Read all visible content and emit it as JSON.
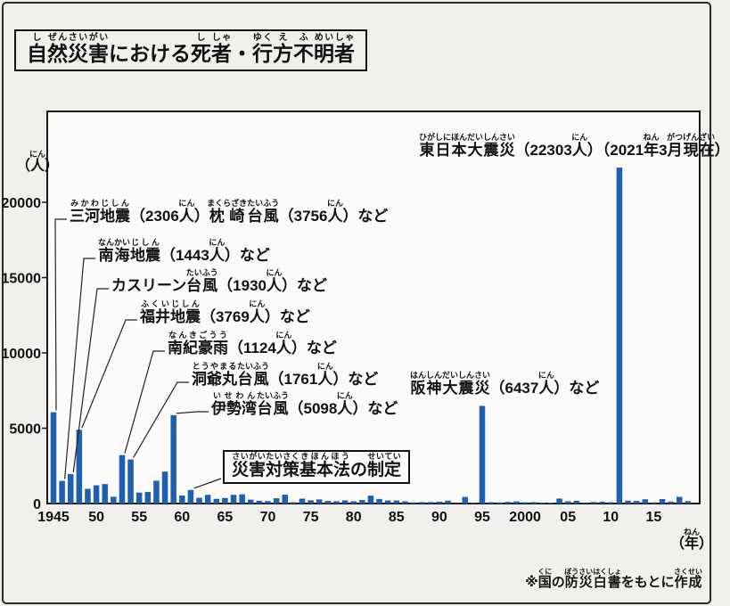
{
  "title": {
    "text": "自然災害における死者・行方不明者",
    "ruby": [
      [
        "自",
        "し"
      ],
      [
        "然",
        "ぜん"
      ],
      [
        "災",
        "さい"
      ],
      [
        "害",
        "がい"
      ],
      [
        "における",
        ""
      ],
      [
        "死",
        "し"
      ],
      [
        "者",
        "しゃ"
      ],
      [
        "・",
        ""
      ],
      [
        "行",
        "ゆく"
      ],
      [
        "方",
        "え"
      ],
      [
        "不",
        "ふ"
      ],
      [
        "明",
        "めい"
      ],
      [
        "者",
        "しゃ"
      ]
    ]
  },
  "source_note": {
    "text": "※国の防災白書をもとに作成",
    "ruby": [
      [
        "※",
        ""
      ],
      [
        "国",
        "くに"
      ],
      [
        "の",
        ""
      ],
      [
        "防災白書",
        "ぼうさいはくしょ"
      ],
      [
        "をもとに",
        ""
      ],
      [
        "作成",
        "さくせい"
      ]
    ]
  },
  "chart_data": {
    "type": "bar",
    "title": "自然災害における死者・行方不明者",
    "ylabel": "（人）",
    "ylabel_ruby": [
      [
        "（",
        ""
      ],
      [
        "人",
        "にん"
      ],
      [
        "）",
        ""
      ]
    ],
    "xlabel": "（年）",
    "xlabel_ruby": [
      [
        "（",
        ""
      ],
      [
        "年",
        "ねん"
      ],
      [
        "）",
        ""
      ]
    ],
    "ylim": [
      0,
      26000
    ],
    "y_ticks": [
      0,
      5000,
      10000,
      15000,
      20000
    ],
    "x_ticks": [
      {
        "year": 1945,
        "label": "1945"
      },
      {
        "year": 1950,
        "label": "50"
      },
      {
        "year": 1955,
        "label": "55"
      },
      {
        "year": 1960,
        "label": "60"
      },
      {
        "year": 1965,
        "label": "65"
      },
      {
        "year": 1970,
        "label": "70"
      },
      {
        "year": 1975,
        "label": "75"
      },
      {
        "year": 1980,
        "label": "80"
      },
      {
        "year": 1985,
        "label": "85"
      },
      {
        "year": 1990,
        "label": "90"
      },
      {
        "year": 1995,
        "label": "95"
      },
      {
        "year": 2000,
        "label": "2000"
      },
      {
        "year": 2005,
        "label": "05"
      },
      {
        "year": 2010,
        "label": "10"
      },
      {
        "year": 2015,
        "label": "15"
      }
    ],
    "bar_color": "#1e5fb0",
    "axis_color": "#1a1a1a",
    "plot_bg": "#fcfbf9",
    "grid": false,
    "categories": [
      1945,
      1946,
      1947,
      1948,
      1949,
      1950,
      1951,
      1952,
      1953,
      1954,
      1955,
      1956,
      1957,
      1958,
      1959,
      1960,
      1961,
      1962,
      1963,
      1964,
      1965,
      1966,
      1967,
      1968,
      1969,
      1970,
      1971,
      1972,
      1973,
      1974,
      1975,
      1976,
      1977,
      1978,
      1979,
      1980,
      1981,
      1982,
      1983,
      1984,
      1985,
      1986,
      1987,
      1988,
      1989,
      1990,
      1991,
      1992,
      1993,
      1994,
      1995,
      1996,
      1997,
      1998,
      1999,
      2000,
      2001,
      2002,
      2003,
      2004,
      2005,
      2006,
      2007,
      2008,
      2009,
      2010,
      2011,
      2012,
      2013,
      2014,
      2015,
      2016,
      2017,
      2018,
      2019
    ],
    "values": [
      6062,
      1504,
      1950,
      4897,
      975,
      1210,
      1291,
      449,
      3212,
      2926,
      727,
      765,
      1515,
      2120,
      5868,
      528,
      902,
      381,
      575,
      307,
      367,
      578,
      607,
      259,
      183,
      163,
      350,
      587,
      85,
      324,
      213,
      273,
      174,
      153,
      208,
      148,
      232,
      524,
      301,
      199,
      199,
      148,
      69,
      93,
      96,
      123,
      190,
      19,
      438,
      39,
      6482,
      84,
      71,
      109,
      141,
      78,
      90,
      48,
      62,
      327,
      148,
      177,
      39,
      101,
      115,
      89,
      22303,
      190,
      173,
      283,
      77,
      297,
      129,
      444,
      159
    ],
    "annotations": [
      {
        "id": "higashinihon-daishinsai",
        "text": "東日本大震災（22303人）（2021年3月現在）",
        "ruby": [
          [
            "東日本大震災",
            "ひがしにほんだいしんさい"
          ],
          [
            "（22303",
            ""
          ],
          [
            "人",
            "にん"
          ],
          [
            "）（2021",
            ""
          ],
          [
            "年",
            "ねん"
          ],
          [
            "3",
            ""
          ],
          [
            "月",
            "がつ"
          ],
          [
            "現在",
            "げんざい"
          ],
          [
            "）",
            ""
          ]
        ],
        "x": 470,
        "y": 172,
        "target_year": 2011,
        "leader": false,
        "boxed": false
      },
      {
        "id": "mikawa-jishin-makurazaki",
        "text": "三河地震（2306人）枕崎台風（3756人）など",
        "ruby": [
          [
            "三河",
            "みかわ"
          ],
          [
            "地震",
            "じしん"
          ],
          [
            "（2306",
            ""
          ],
          [
            "人",
            "にん"
          ],
          [
            "）",
            ""
          ],
          [
            "枕崎",
            "まくらざき"
          ],
          [
            "台風",
            "たいふう"
          ],
          [
            "（3756",
            ""
          ],
          [
            "人",
            "にん"
          ],
          [
            "）など",
            ""
          ]
        ],
        "x": 78,
        "y": 246,
        "target_year": 1945,
        "leader": true,
        "boxed": false
      },
      {
        "id": "nankai-jishin",
        "text": "南海地震（1443人）など",
        "ruby": [
          [
            "南海",
            "なんかい"
          ],
          [
            "地震",
            "じしん"
          ],
          [
            "（1443",
            ""
          ],
          [
            "人",
            "にん"
          ],
          [
            "）など",
            ""
          ]
        ],
        "x": 110,
        "y": 290,
        "target_year": 1946,
        "leader": true,
        "boxed": false
      },
      {
        "id": "kathleen-taifu",
        "text": "カスリーン台風（1930人）など",
        "ruby": [
          [
            "カスリーン",
            ""
          ],
          [
            "台風",
            "たいふう"
          ],
          [
            "（1930",
            ""
          ],
          [
            "人",
            "にん"
          ],
          [
            "）など",
            ""
          ]
        ],
        "x": 125,
        "y": 324,
        "target_year": 1947,
        "leader": true,
        "boxed": false
      },
      {
        "id": "fukui-jishin",
        "text": "福井地震（3769人）など",
        "ruby": [
          [
            "福井",
            "ふくい"
          ],
          [
            "地震",
            "じしん"
          ],
          [
            "（3769",
            ""
          ],
          [
            "人",
            "にん"
          ],
          [
            "）など",
            ""
          ]
        ],
        "x": 157,
        "y": 359,
        "target_year": 1948,
        "leader": true,
        "boxed": false
      },
      {
        "id": "nanki-gouu",
        "text": "南紀豪雨（1124人）など",
        "ruby": [
          [
            "南紀",
            "なんき"
          ],
          [
            "豪雨",
            "ごうう"
          ],
          [
            "（1124",
            ""
          ],
          [
            "人",
            "にん"
          ],
          [
            "）など",
            ""
          ]
        ],
        "x": 188,
        "y": 394,
        "target_year": 1953,
        "leader": true,
        "boxed": false
      },
      {
        "id": "touyamaru-taifu",
        "text": "洞爺丸台風（1761人）など",
        "ruby": [
          [
            "洞爺丸",
            "とうやまる"
          ],
          [
            "台風",
            "たいふう"
          ],
          [
            "（1761",
            ""
          ],
          [
            "人",
            "にん"
          ],
          [
            "）など",
            ""
          ]
        ],
        "x": 215,
        "y": 429,
        "target_year": 1954,
        "leader": true,
        "boxed": false
      },
      {
        "id": "isewan-taifu",
        "text": "伊勢湾台風（5098人）など",
        "ruby": [
          [
            "伊勢湾",
            "いせわん"
          ],
          [
            "台風",
            "たいふう"
          ],
          [
            "（5098",
            ""
          ],
          [
            "人",
            "にん"
          ],
          [
            "）など",
            ""
          ]
        ],
        "x": 237,
        "y": 462,
        "target_year": 1959,
        "leader": true,
        "boxed": false
      },
      {
        "id": "hanshin-daishinsai",
        "text": "阪神大震災（6437人）など",
        "ruby": [
          [
            "阪神大震災",
            "はんしんだいしんさい"
          ],
          [
            "（6437",
            ""
          ],
          [
            "人",
            "にん"
          ],
          [
            "）など",
            ""
          ]
        ],
        "x": 460,
        "y": 439,
        "target_year": 1995,
        "leader": false,
        "boxed": false
      },
      {
        "id": "saigai-taisaku-kihonhou",
        "text": "災害対策基本法の制定",
        "ruby": [
          [
            "災害対策",
            "さいがいたいさく"
          ],
          [
            "基本法",
            "きほんほう"
          ],
          [
            "の",
            ""
          ],
          [
            "制定",
            "せいてい"
          ]
        ],
        "x": 250,
        "y": 528,
        "target_year": 1961,
        "leader": true,
        "boxed": true
      }
    ]
  }
}
